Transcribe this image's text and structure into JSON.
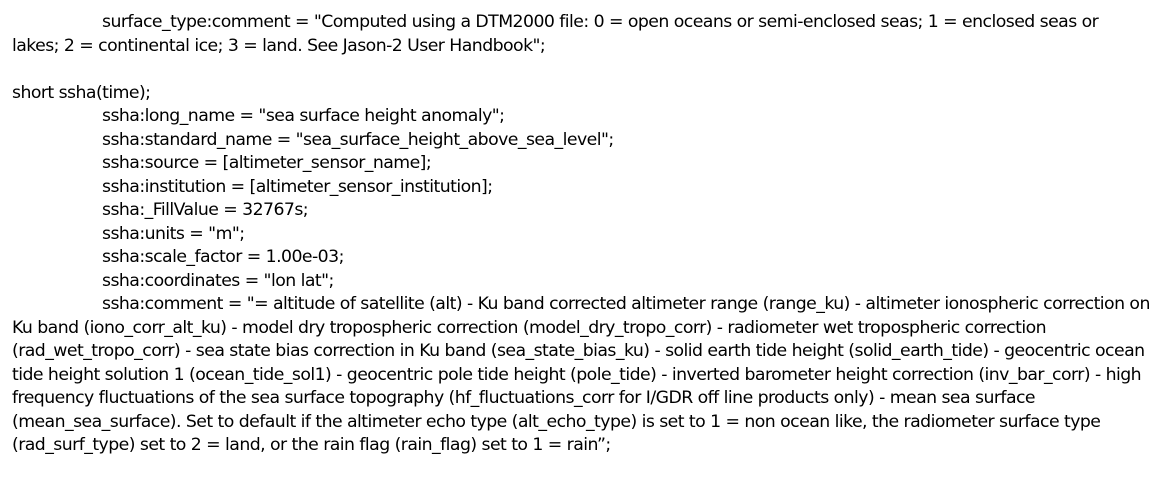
{
  "surface_type_comment": "surface_type:comment = \"Computed using a DTM2000 file: 0 = open oceans or semi-enclosed seas; 1 = enclosed seas or lakes; 2 = continental ice; 3 = land. See Jason-2 User Handbook\";",
  "variable_decl": "short ssha(time);",
  "attributes": [
    "ssha:long_name = \"sea surface height anomaly\";",
    "ssha:standard_name = \"sea_surface_height_above_sea_level\";",
    "ssha:source = [altimeter_sensor_name];",
    "ssha:institution = [altimeter_sensor_institution];",
    "ssha:_FillValue = 32767s;",
    "ssha:units = \"m\";",
    "ssha:scale_factor = 1.00e-03;",
    "ssha:coordinates = \"lon lat\";"
  ],
  "ssha_comment": "ssha:comment = \"= altitude of satellite (alt) - Ku band corrected altimeter range (range_ku) - altimeter ionospheric correction on Ku band (iono_corr_alt_ku) - model dry tropospheric correction (model_dry_tropo_corr) - radiometer wet tropospheric correction (rad_wet_tropo_corr) - sea state bias correction in Ku band (sea_state_bias_ku) - solid earth tide height (solid_earth_tide) - geocentric ocean tide height solution 1 (ocean_tide_sol1) - geocentric pole tide height (pole_tide) - inverted barometer height correction (inv_bar_corr) - high frequency fluctuations of the sea surface topography (hf_fluctuations_corr for I/GDR off line products only) - mean sea surface (mean_sea_surface). Set to default if the altimeter echo type (alt_echo_type) is set to 1 = non ocean like, the radiometer surface type (rad_surf_type) set to 2 = land, or the rain flag (rain_flag) set to 1 = rain”;"
}
